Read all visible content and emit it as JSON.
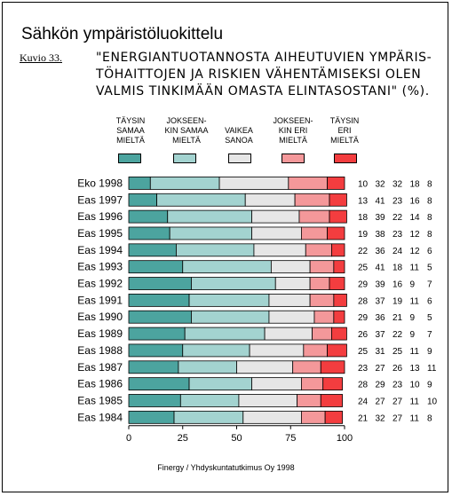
{
  "title": "Sähkön ympäristöluokittelu",
  "figure_label": "Kuvio 33.",
  "question_lines": [
    "\"ENERGIANTUOTANNOSTA AIHEUTUVIEN YMPÄRIS-",
    "TÖHAITTOJEN JA RISKIEN VÄHENTÄMISEKSI OLEN",
    "VALMIS TINKIMÄÄN OMASTA ELINTASOSTANI\" (%)."
  ],
  "source": "Finergy / Yhdyskuntatutkimus Oy 1998",
  "colors": [
    "#4ca49f",
    "#a3d3d0",
    "#e6e6e6",
    "#f4989a",
    "#f33d3f"
  ],
  "chart_data": {
    "type": "bar",
    "orientation": "horizontal",
    "stacked": true,
    "categories": [
      "Eko 1998",
      "Eas 1997",
      "Eas 1996",
      "Eas 1995",
      "Eas 1994",
      "Eas 1993",
      "Eas 1992",
      "Eas 1991",
      "Eas 1990",
      "Eas 1989",
      "Eas 1988",
      "Eas 1987",
      "Eas 1986",
      "Eas 1985",
      "Eas 1984"
    ],
    "series": [
      {
        "name": "TÄYSIN SAMAA MIELTÄ",
        "values": [
          10,
          13,
          18,
          19,
          22,
          25,
          29,
          28,
          29,
          26,
          25,
          23,
          28,
          24,
          21
        ]
      },
      {
        "name": "JOKSEEN-KIN SAMAA MIELTÄ",
        "values": [
          32,
          41,
          39,
          38,
          36,
          41,
          39,
          37,
          36,
          37,
          31,
          27,
          29,
          27,
          32
        ]
      },
      {
        "name": "VAIKEA SANOA",
        "values": [
          32,
          23,
          22,
          23,
          24,
          18,
          16,
          19,
          21,
          22,
          25,
          26,
          23,
          27,
          27
        ]
      },
      {
        "name": "JOKSEEN-KIN ERI MIELTÄ",
        "values": [
          18,
          16,
          14,
          12,
          12,
          11,
          9,
          11,
          9,
          9,
          11,
          13,
          10,
          11,
          11
        ]
      },
      {
        "name": "TÄYSIN ERI MIELTÄ",
        "values": [
          8,
          8,
          8,
          8,
          6,
          5,
          7,
          6,
          5,
          7,
          9,
          11,
          9,
          10,
          8
        ]
      }
    ],
    "legend_labels": [
      "TÄYSIN\nSAMAA\nMIELTÄ",
      "JOKSEEN-\nKIN SAMAA\nMIELTÄ",
      "VAIKEA\nSANOA",
      "JOKSEEN-\nKIN ERI\nMIELTÄ",
      "TÄYSIN\nERI\nMIELTÄ"
    ],
    "xlim": [
      0,
      100
    ],
    "xticks": [
      0,
      25,
      50,
      75,
      100
    ],
    "legend_position": "top",
    "grid": false
  }
}
